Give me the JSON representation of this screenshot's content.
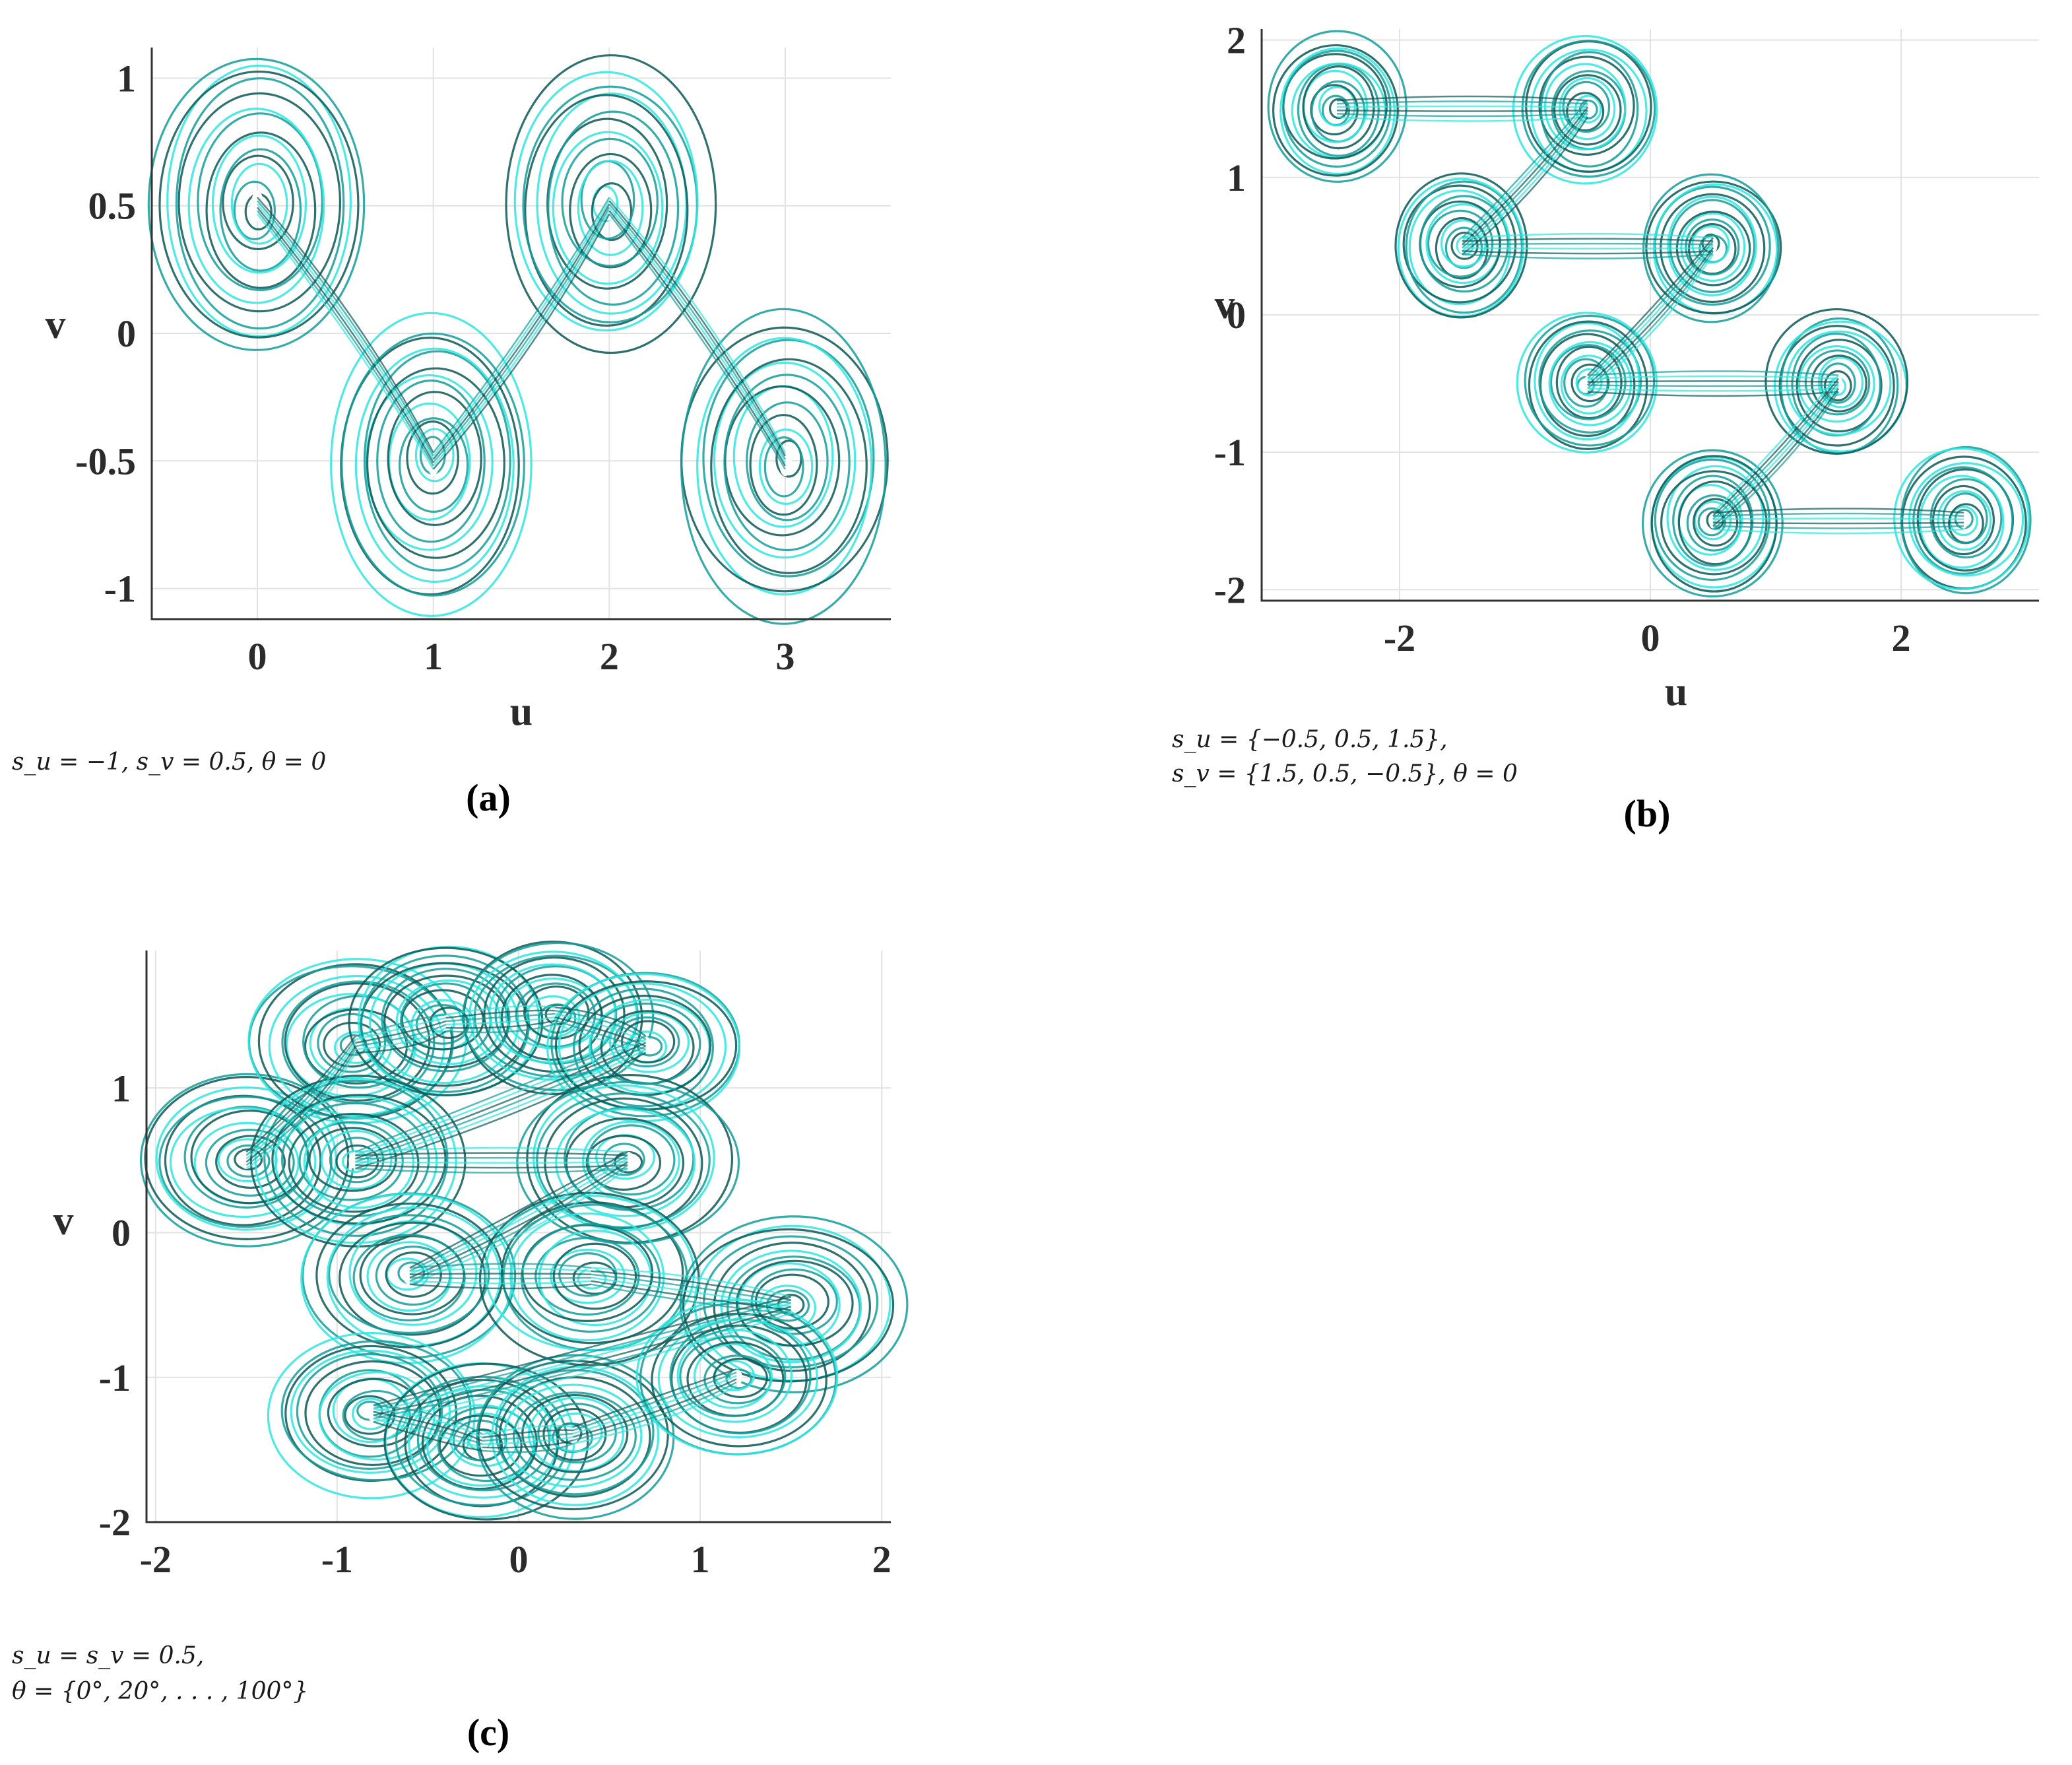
{
  "colors": {
    "light": "#2ee6e0",
    "mid": "#139e9a",
    "dark": "#0b5856"
  },
  "chart_data": [
    {
      "panel": "(a)",
      "type": "scatter",
      "xlabel": "u",
      "ylabel": "v",
      "xlim": [
        -0.6,
        3.6
      ],
      "ylim": [
        -1.12,
        1.12
      ],
      "xticks": [
        "0",
        "1",
        "2",
        "3"
      ],
      "yticks": [
        "1",
        "0.5",
        "0",
        "-0.5",
        "-1"
      ],
      "grid": true,
      "caption": "s_u = −1, s_v = 0.5, θ = 0",
      "attractor_centers": [
        {
          "u": 0,
          "v": 0.5,
          "r": 0.6
        },
        {
          "u": 1,
          "v": -0.5,
          "r": 0.58
        },
        {
          "u": 2,
          "v": 0.5,
          "r": 0.58
        },
        {
          "u": 3,
          "v": -0.5,
          "r": 0.6
        }
      ]
    },
    {
      "panel": "(b)",
      "type": "scatter",
      "xlabel": "u",
      "ylabel": "v",
      "xlim": [
        -3.1,
        3.1
      ],
      "ylim": [
        -2.08,
        2.08
      ],
      "xticks": [
        "-2",
        "0",
        "2"
      ],
      "yticks": [
        "2",
        "1",
        "0",
        "-1",
        "-2"
      ],
      "grid": true,
      "caption_line1": "s_u = {−0.5, 0.5, 1.5},",
      "caption_line2": "s_v = {1.5, 0.5, −0.5}, θ = 0",
      "attractor_centers": [
        {
          "u": -2.5,
          "v": 1.5,
          "r": 0.55
        },
        {
          "u": -0.5,
          "v": 1.5,
          "r": 0.55
        },
        {
          "u": -1.5,
          "v": 0.5,
          "r": 0.55
        },
        {
          "u": 0.5,
          "v": 0.5,
          "r": 0.55
        },
        {
          "u": -0.5,
          "v": -0.5,
          "r": 0.55
        },
        {
          "u": 1.5,
          "v": -0.5,
          "r": 0.55
        },
        {
          "u": 0.5,
          "v": -1.5,
          "r": 0.55
        },
        {
          "u": 2.5,
          "v": -1.5,
          "r": 0.55
        }
      ]
    },
    {
      "panel": "(c)",
      "type": "scatter",
      "xlabel": "",
      "ylabel": "v",
      "xlim": [
        -2.05,
        2.05
      ],
      "ylim": [
        -2.0,
        1.95
      ],
      "xticks": [
        "-2",
        "-1",
        "0",
        "1",
        "2"
      ],
      "yticks": [
        "1",
        "0",
        "-1",
        "-2"
      ],
      "grid": true,
      "caption_line1": "s_u = s_v = 0.5,",
      "caption_line2": "θ = {0°, 20°, . . . , 100°}",
      "attractor_centers": [
        {
          "u": -1.5,
          "v": 0.5,
          "r": 0.6
        },
        {
          "u": -0.9,
          "v": 1.3,
          "r": 0.6
        },
        {
          "u": -0.4,
          "v": 1.45,
          "r": 0.55
        },
        {
          "u": 0.2,
          "v": 1.5,
          "r": 0.55
        },
        {
          "u": 0.7,
          "v": 1.3,
          "r": 0.55
        },
        {
          "u": -0.9,
          "v": 0.5,
          "r": 0.6
        },
        {
          "u": 0.6,
          "v": 0.5,
          "r": 0.6
        },
        {
          "u": -0.6,
          "v": -0.3,
          "r": 0.6
        },
        {
          "u": 0.4,
          "v": -0.3,
          "r": 0.6
        },
        {
          "u": 1.5,
          "v": -0.5,
          "r": 0.6
        },
        {
          "u": -0.8,
          "v": -1.25,
          "r": 0.55
        },
        {
          "u": -0.2,
          "v": -1.45,
          "r": 0.55
        },
        {
          "u": 0.3,
          "v": -1.4,
          "r": 0.55
        },
        {
          "u": 1.2,
          "v": -1.0,
          "r": 0.55
        }
      ]
    }
  ]
}
